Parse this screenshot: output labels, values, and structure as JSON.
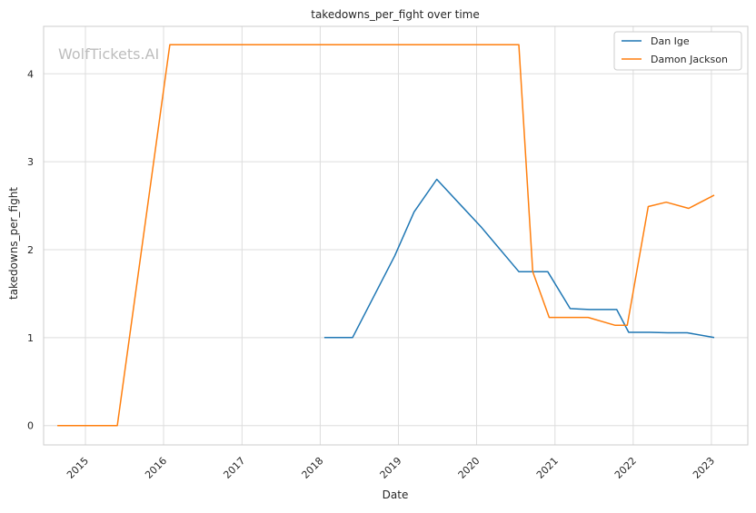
{
  "chart_data": {
    "type": "line",
    "title": "takedowns_per_fight over time",
    "xlabel": "Date",
    "ylabel": "takedowns_per_fight",
    "watermark": "WolfTickets.AI",
    "x_ticks": [
      "2015",
      "2016",
      "2017",
      "2018",
      "2019",
      "2020",
      "2021",
      "2022",
      "2023"
    ],
    "y_ticks": [
      0,
      1,
      2,
      3,
      4
    ],
    "xlim": [
      "2014-06-20",
      "2023-06-20"
    ],
    "ylim": [
      -0.22,
      4.54
    ],
    "grid": true,
    "legend_position": "top-right",
    "series": [
      {
        "name": "Dan Ige",
        "color": "#1f77b4",
        "points": [
          {
            "x": "2018-01-20",
            "y": 1.0
          },
          {
            "x": "2018-06-01",
            "y": 1.0
          },
          {
            "x": "2018-12-15",
            "y": 1.93
          },
          {
            "x": "2019-03-15",
            "y": 2.43
          },
          {
            "x": "2019-06-29",
            "y": 2.8
          },
          {
            "x": "2020-01-25",
            "y": 2.25
          },
          {
            "x": "2020-07-16",
            "y": 1.75
          },
          {
            "x": "2020-11-28",
            "y": 1.75
          },
          {
            "x": "2021-03-13",
            "y": 1.33
          },
          {
            "x": "2021-06-12",
            "y": 1.32
          },
          {
            "x": "2021-10-16",
            "y": 1.32
          },
          {
            "x": "2021-12-11",
            "y": 1.06
          },
          {
            "x": "2022-03-19",
            "y": 1.06
          },
          {
            "x": "2022-06-11",
            "y": 1.055
          },
          {
            "x": "2022-09-10",
            "y": 1.055
          },
          {
            "x": "2023-01-14",
            "y": 1.0
          }
        ]
      },
      {
        "name": "Damon Jackson",
        "color": "#ff7f0e",
        "points": [
          {
            "x": "2014-08-23",
            "y": 0.0
          },
          {
            "x": "2015-05-30",
            "y": 0.0
          },
          {
            "x": "2016-01-30",
            "y": 4.33
          },
          {
            "x": "2020-07-16",
            "y": 4.33
          },
          {
            "x": "2020-09-19",
            "y": 1.75
          },
          {
            "x": "2020-12-05",
            "y": 1.23
          },
          {
            "x": "2021-06-05",
            "y": 1.23
          },
          {
            "x": "2021-10-09",
            "y": 1.14
          },
          {
            "x": "2021-12-04",
            "y": 1.14
          },
          {
            "x": "2022-03-12",
            "y": 2.49
          },
          {
            "x": "2022-06-04",
            "y": 2.54
          },
          {
            "x": "2022-09-17",
            "y": 2.47
          },
          {
            "x": "2023-01-14",
            "y": 2.62
          }
        ]
      }
    ]
  }
}
